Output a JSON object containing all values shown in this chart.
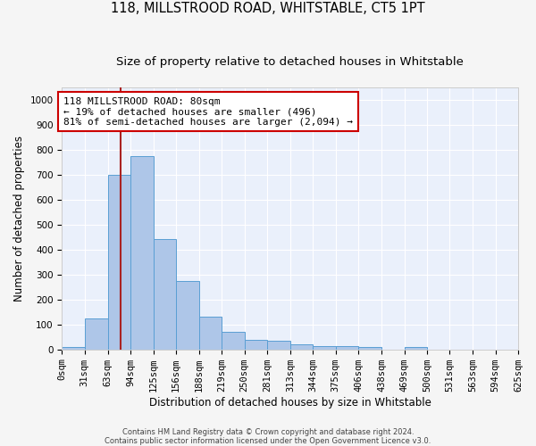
{
  "title": "118, MILLSTROOD ROAD, WHITSTABLE, CT5 1PT",
  "subtitle": "Size of property relative to detached houses in Whitstable",
  "xlabel": "Distribution of detached houses by size in Whitstable",
  "ylabel": "Number of detached properties",
  "bar_values": [
    8,
    125,
    700,
    775,
    440,
    275,
    130,
    70,
    38,
    35,
    22,
    12,
    12,
    8,
    0,
    8,
    0,
    0,
    0,
    0
  ],
  "bin_labels": [
    "0sqm",
    "31sqm",
    "63sqm",
    "94sqm",
    "125sqm",
    "156sqm",
    "188sqm",
    "219sqm",
    "250sqm",
    "281sqm",
    "313sqm",
    "344sqm",
    "375sqm",
    "406sqm",
    "438sqm",
    "469sqm",
    "500sqm",
    "531sqm",
    "563sqm",
    "594sqm",
    "625sqm"
  ],
  "bin_edges": [
    0,
    31,
    63,
    94,
    125,
    156,
    188,
    219,
    250,
    281,
    313,
    344,
    375,
    406,
    438,
    469,
    500,
    531,
    563,
    594,
    625
  ],
  "bar_color": "#aec6e8",
  "bar_edge_color": "#5a9fd4",
  "background_color": "#eaf0fb",
  "grid_color": "#ffffff",
  "vline_x": 80,
  "vline_color": "#aa2222",
  "annotation_text": "118 MILLSTROOD ROAD: 80sqm\n← 19% of detached houses are smaller (496)\n81% of semi-detached houses are larger (2,094) →",
  "annotation_box_color": "#ffffff",
  "annotation_box_edge": "#cc0000",
  "ylim": [
    0,
    1050
  ],
  "yticks": [
    0,
    100,
    200,
    300,
    400,
    500,
    600,
    700,
    800,
    900,
    1000
  ],
  "title_fontsize": 10.5,
  "subtitle_fontsize": 9.5,
  "label_fontsize": 8.5,
  "tick_fontsize": 7.5,
  "footer_text": "Contains HM Land Registry data © Crown copyright and database right 2024.\nContains public sector information licensed under the Open Government Licence v3.0."
}
